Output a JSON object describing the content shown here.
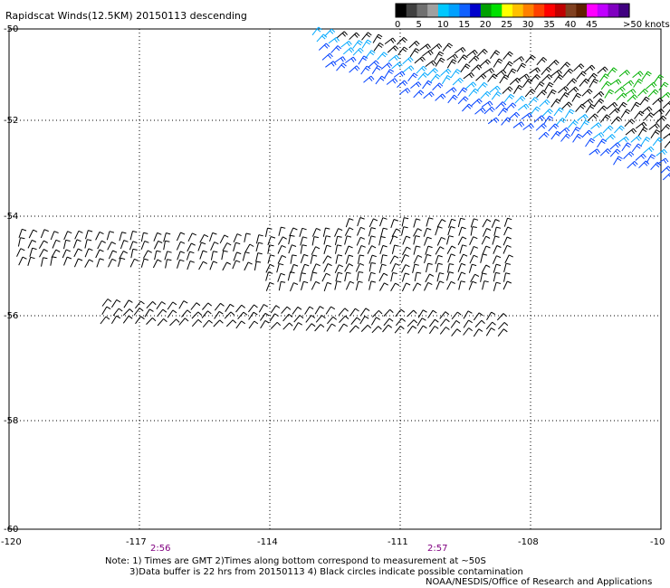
{
  "title": "Rapidscat Winds(12.5KM) 20150113 descending",
  "legend": {
    "unit_label": ">50 knots",
    "ticks": [
      "0",
      "5",
      "10",
      "15",
      "20",
      "25",
      "30",
      "35",
      "40",
      "45"
    ],
    "colors": [
      "#000000",
      "#404040",
      "#707070",
      "#a0a0a0",
      "#00c8ff",
      "#00a0ff",
      "#1060ff",
      "#0000cc",
      "#00a000",
      "#00e000",
      "#ffff00",
      "#ffc000",
      "#ff8000",
      "#ff4000",
      "#ff0000",
      "#c00000",
      "#804020",
      "#602000",
      "#ff00ff",
      "#c000ff",
      "#8000c0",
      "#400080"
    ]
  },
  "axes": {
    "x_ticks": [
      "-120",
      "-117",
      "-114",
      "-111",
      "-108",
      "-10"
    ],
    "y_ticks": [
      "-50",
      "-52",
      "-54",
      "-56",
      "-58",
      "-60"
    ]
  },
  "times": [
    "2:56",
    "2:57"
  ],
  "notes": [
    "Note: 1) Times are GMT 2)Times along bottom correspond to measurement at ~50S",
    "3)Data buffer is 22 hrs from 20150113 4) Black circles indicate possible contamination",
    "NOAA/NESDIS/Office of Research and Applications"
  ]
}
